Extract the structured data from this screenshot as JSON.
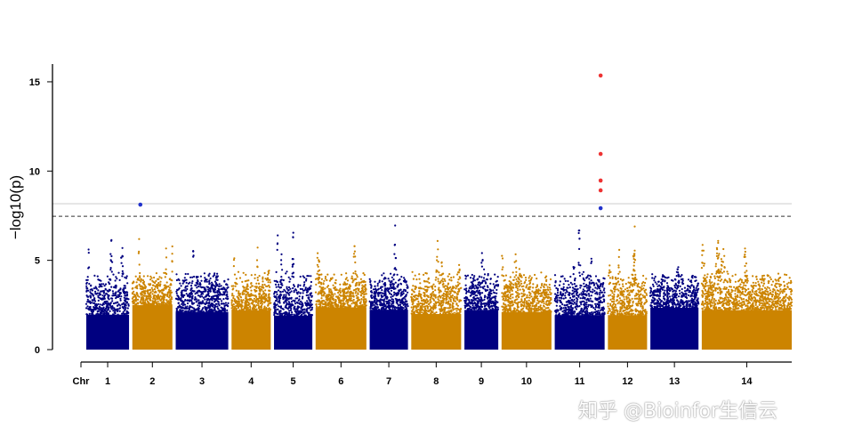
{
  "chart_data": {
    "type": "scatter",
    "subtype": "manhattan",
    "ylabel": "−log10(p)",
    "ylabel_parts": {
      "prefix": "−log",
      "sub": "10",
      "open": "(",
      "var": "p",
      "close": ")"
    },
    "xlabel": "Chr",
    "ylim": [
      0,
      16
    ],
    "yticks": [
      0,
      5,
      10,
      15
    ],
    "chromosomes": [
      "1",
      "2",
      "3",
      "4",
      "5",
      "6",
      "7",
      "8",
      "9",
      "10",
      "11",
      "12",
      "13",
      "14"
    ],
    "chromosome_relative_lengths": [
      48,
      45,
      59,
      44,
      43,
      57,
      43,
      56,
      38,
      56,
      56,
      44,
      54,
      101
    ],
    "max_background_neglogp": [
      7.0,
      6.6,
      5.9,
      6.2,
      6.9,
      6.5,
      7.2,
      6.5,
      6.2,
      6.0,
      7.4,
      7.1,
      5.3,
      6.5
    ],
    "colors": [
      "#000080",
      "#CC8400"
    ],
    "thresholds": [
      {
        "value": 8.17,
        "style": "solid",
        "color": "#cccccc"
      },
      {
        "value": 7.47,
        "style": "dashed",
        "color": "#333333"
      }
    ],
    "significant_points": [
      {
        "chr": "2",
        "pos_fraction": 0.2,
        "value": 8.12,
        "color": "#2233cc"
      },
      {
        "chr": "11",
        "pos_fraction": 0.92,
        "value": 15.35,
        "color": "#ee3333"
      },
      {
        "chr": "11",
        "pos_fraction": 0.92,
        "value": 10.96,
        "color": "#ee3333"
      },
      {
        "chr": "11",
        "pos_fraction": 0.92,
        "value": 9.47,
        "color": "#ee3333"
      },
      {
        "chr": "11",
        "pos_fraction": 0.92,
        "value": 8.92,
        "color": "#ee3333"
      },
      {
        "chr": "11",
        "pos_fraction": 0.92,
        "value": 7.92,
        "color": "#2233cc"
      }
    ]
  },
  "watermark": "知乎 @Bioinfor生信云"
}
